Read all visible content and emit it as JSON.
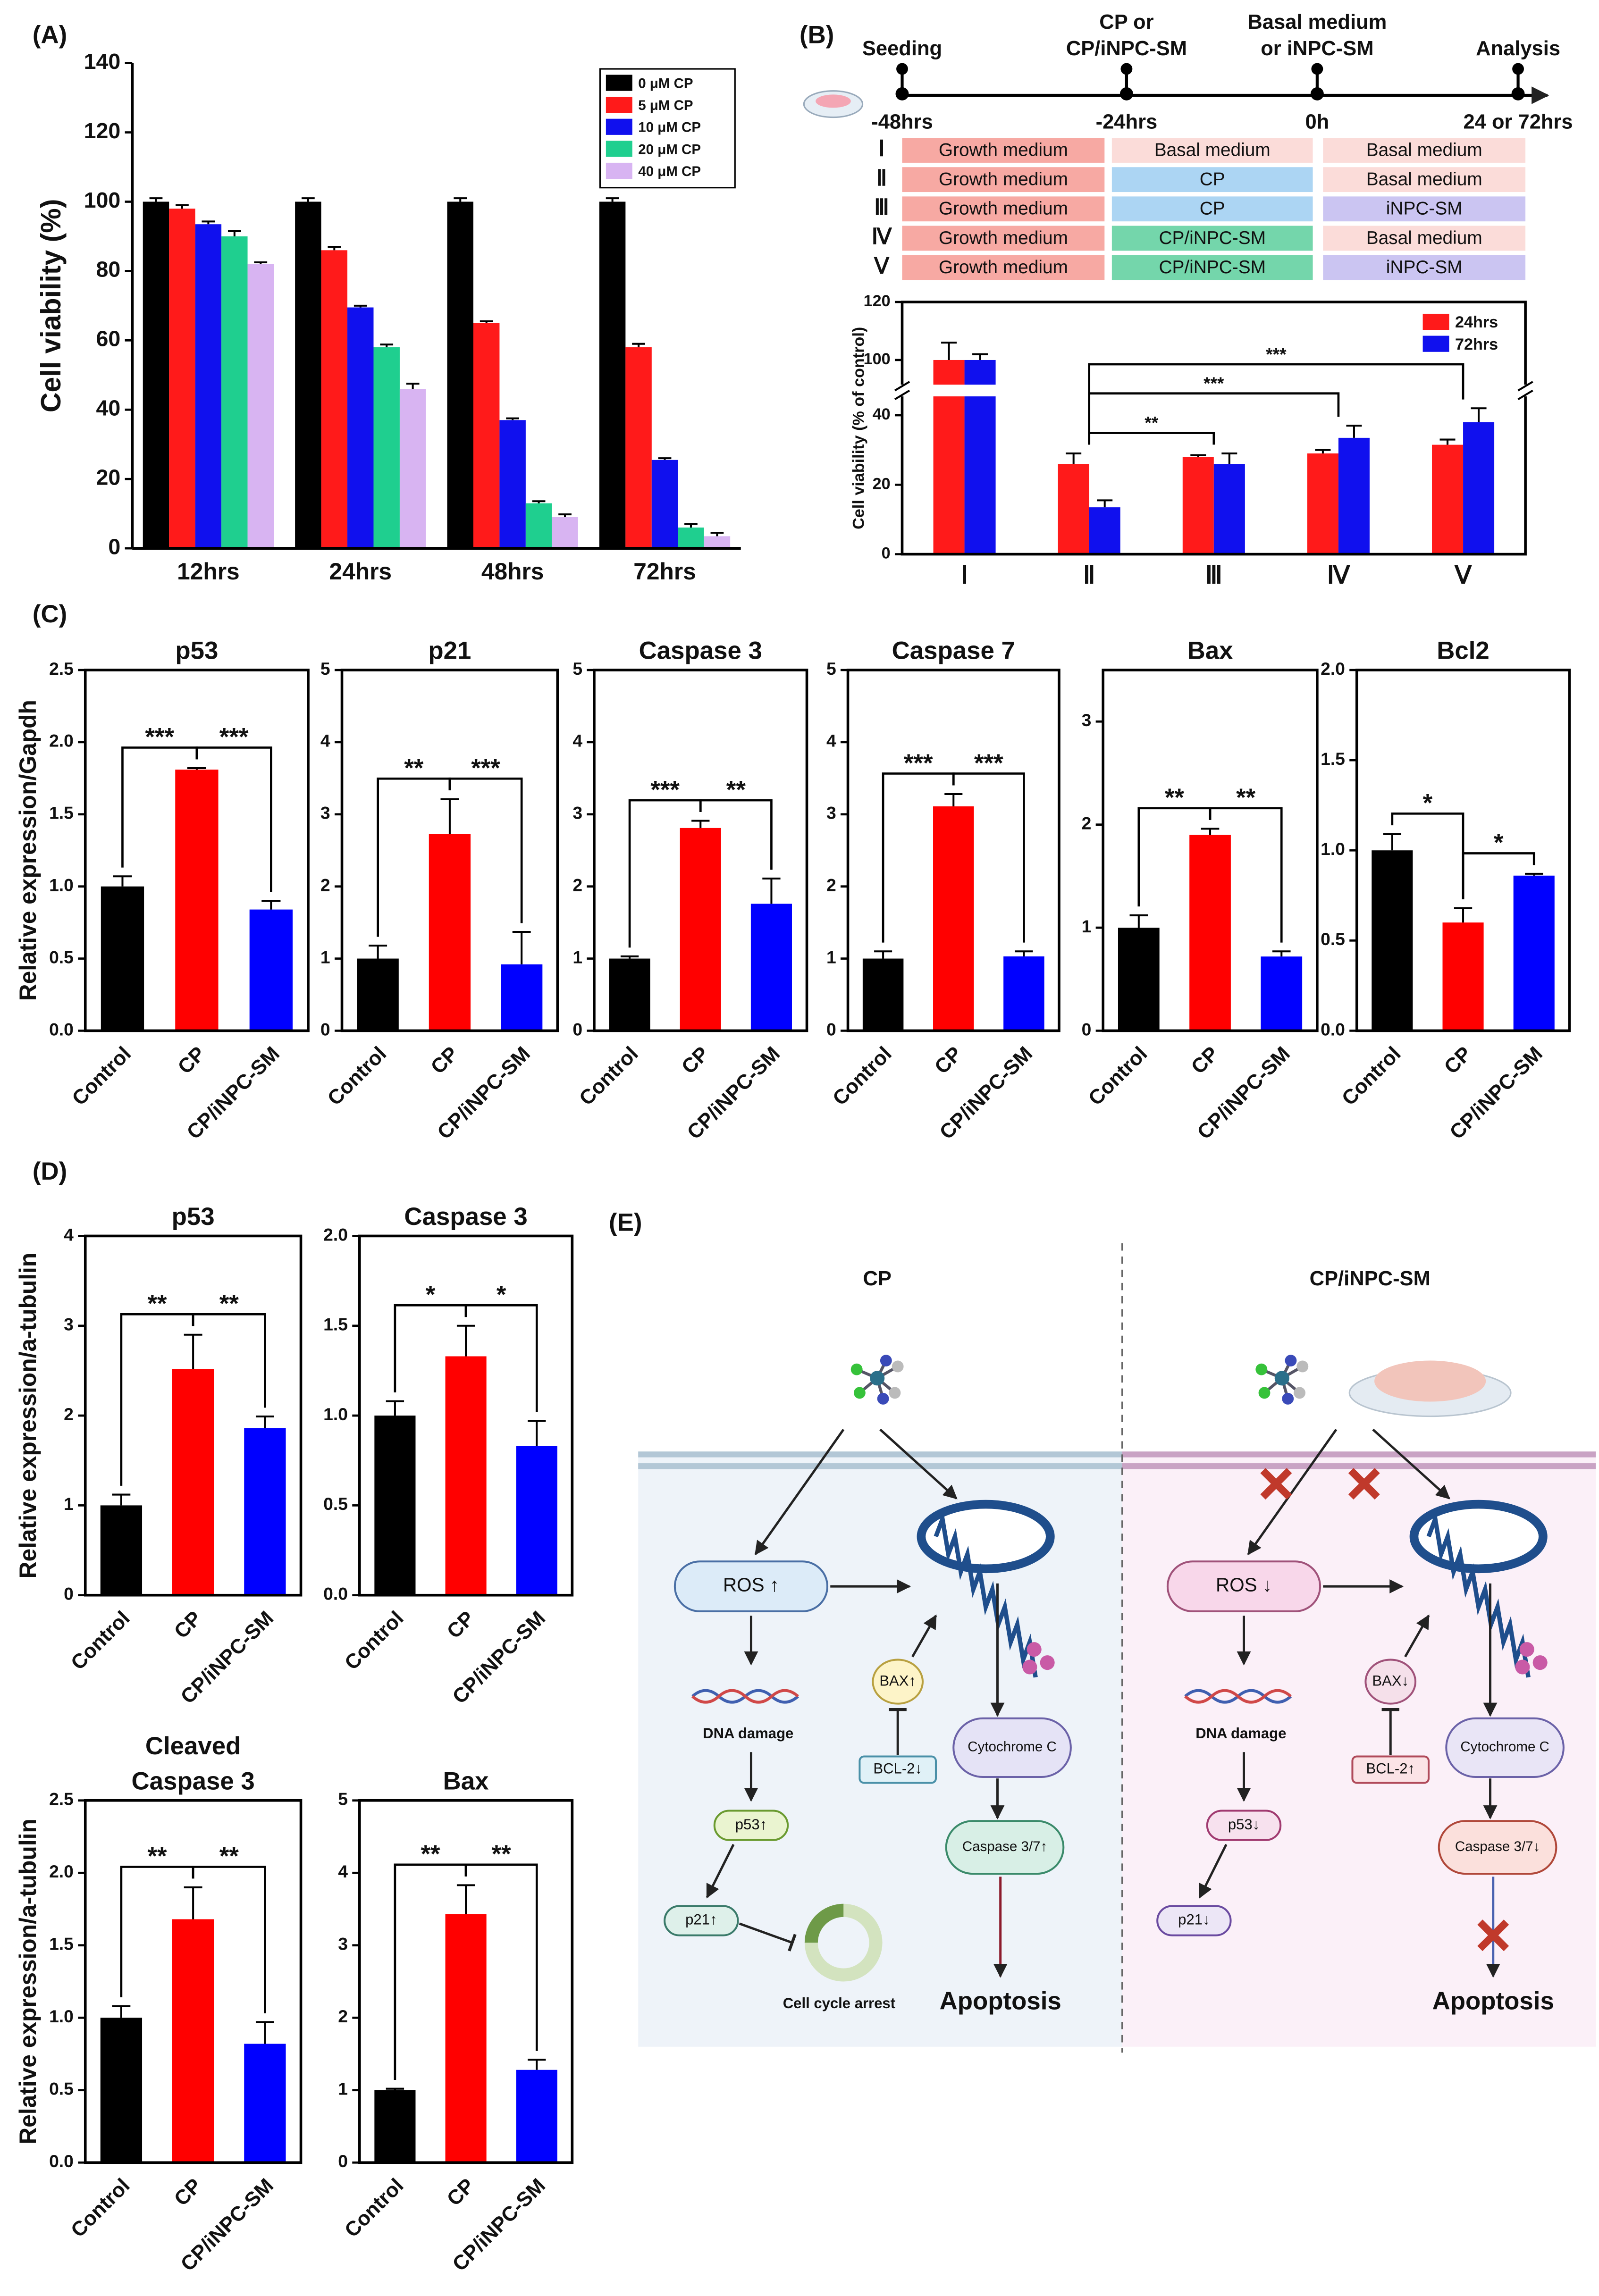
{
  "panel_labels": [
    "(A)",
    "(B)",
    "(C)",
    "(D)",
    "(E)"
  ],
  "chart_data": [
    {
      "type": "bar",
      "ylabel": "Cell viability (%)",
      "categories": [
        "12hrs",
        "24hrs",
        "48hrs",
        "72hrs"
      ],
      "series": [
        {
          "name": "0 μM CP",
          "color": "#000000",
          "values": [
            100,
            100,
            100,
            100
          ],
          "errors": [
            1,
            1,
            1,
            1
          ]
        },
        {
          "name": "5 μM CP",
          "color": "#ff1a1a",
          "values": [
            98,
            86,
            65,
            58
          ],
          "errors": [
            1,
            1,
            0.5,
            1
          ]
        },
        {
          "name": "10 μM CP",
          "color": "#1010ee",
          "values": [
            93.5,
            69.5,
            37,
            25.5
          ],
          "errors": [
            0.8,
            0.5,
            0.5,
            0.5
          ]
        },
        {
          "name": "20 μM CP",
          "color": "#1fcf8f",
          "values": [
            90,
            58,
            13,
            6
          ],
          "errors": [
            1.5,
            0.8,
            0.6,
            1
          ]
        },
        {
          "name": "40 μM CP",
          "color": "#d8b4f2",
          "values": [
            82,
            46,
            9,
            3.5
          ],
          "errors": [
            0.5,
            1.5,
            0.8,
            1
          ]
        }
      ],
      "ylim": [
        0,
        140
      ],
      "yticks": [
        0,
        20,
        40,
        60,
        80,
        100,
        120,
        140
      ],
      "legend": "upper right",
      "frame": false
    },
    {
      "type": "bar",
      "ylabel": "Cell viability (% of control)",
      "categories": [
        "Ⅰ",
        "Ⅱ",
        "Ⅲ",
        "Ⅳ",
        "Ⅴ"
      ],
      "series": [
        {
          "name": "24hrs",
          "color": "#ff1a1a",
          "values": [
            100,
            26,
            28,
            29,
            31.5
          ],
          "errors": [
            6,
            3,
            0.5,
            1,
            1.5
          ]
        },
        {
          "name": "72hrs",
          "color": "#1010ee",
          "values": [
            100,
            13.5,
            26,
            33.5,
            38
          ],
          "errors": [
            2,
            2,
            3,
            3.5,
            4
          ]
        }
      ],
      "ylim": [
        0,
        120
      ],
      "yticks": [
        0,
        20,
        40,
        100,
        120
      ],
      "axis_break": [
        45,
        92
      ],
      "legend": "upper right",
      "frame": true,
      "significance": [
        {
          "text": "**",
          "between": [
            1,
            2
          ]
        },
        {
          "text": "***",
          "between": [
            1,
            3
          ]
        },
        {
          "text": "***",
          "between": [
            1,
            4
          ]
        }
      ],
      "timeline": [
        {
          "event": [
            "Seeding"
          ],
          "time": "-48hrs"
        },
        {
          "event": [
            "CP or",
            "CP/iNPC-SM"
          ],
          "time": "-24hrs"
        },
        {
          "event": [
            "Basal medium",
            "or iNPC-SM"
          ],
          "time": "0h"
        },
        {
          "event": [
            "Analysis"
          ],
          "time": "24 or 72hrs"
        }
      ],
      "table": [
        {
          "group": "Ⅰ",
          "cells": [
            {
              "text": "Growth medium",
              "color": "#f7a9a3"
            },
            {
              "text": "Basal medium",
              "color": "#fbdcd9"
            },
            {
              "text": "Basal medium",
              "color": "#fbdcd9"
            }
          ]
        },
        {
          "group": "Ⅱ",
          "cells": [
            {
              "text": "Growth medium",
              "color": "#f7a9a3"
            },
            {
              "text": "CP",
              "color": "#acd5f3"
            },
            {
              "text": "Basal medium",
              "color": "#fbdcd9"
            }
          ]
        },
        {
          "group": "Ⅲ",
          "cells": [
            {
              "text": "Growth medium",
              "color": "#f7a9a3"
            },
            {
              "text": "CP",
              "color": "#acd5f3"
            },
            {
              "text": "iNPC-SM",
              "color": "#cbc5f2"
            }
          ]
        },
        {
          "group": "Ⅳ",
          "cells": [
            {
              "text": "Growth medium",
              "color": "#f7a9a3"
            },
            {
              "text": "CP/iNPC-SM",
              "color": "#74d6ab"
            },
            {
              "text": "Basal medium",
              "color": "#fbdcd9"
            }
          ]
        },
        {
          "group": "Ⅴ",
          "cells": [
            {
              "text": "Growth medium",
              "color": "#f7a9a3"
            },
            {
              "text": "CP/iNPC-SM",
              "color": "#74d6ab"
            },
            {
              "text": "iNPC-SM",
              "color": "#cbc5f2"
            }
          ]
        }
      ]
    },
    {
      "type": "bar",
      "title": "p53",
      "ylabel": "Relative expression/Gapdh",
      "categories": [
        "Control",
        "CP",
        "CP/iNPC-SM"
      ],
      "colors": [
        "#000000",
        "#ff0000",
        "#0000ff"
      ],
      "values": [
        1.0,
        1.81,
        0.84
      ],
      "errors": [
        0.07,
        0.01,
        0.06
      ],
      "ylim": [
        0,
        2.5
      ],
      "yticks": [
        {
          "value": 0,
          "label": "0.0"
        },
        0.5,
        {
          "value": 1,
          "label": "1.0"
        },
        1.5,
        {
          "value": 2,
          "label": "2.0"
        },
        2.5
      ],
      "frame": true,
      "significance": [
        {
          "text": "***",
          "between": [
            0,
            1
          ]
        },
        {
          "text": "***",
          "between": [
            1,
            2
          ]
        }
      ]
    },
    {
      "type": "bar",
      "title": "p21",
      "categories": [
        "Control",
        "CP",
        "CP/iNPC-SM"
      ],
      "colors": [
        "#000000",
        "#ff0000",
        "#0000ff"
      ],
      "values": [
        1.0,
        2.73,
        0.92
      ],
      "errors": [
        0.18,
        0.48,
        0.45
      ],
      "ylim": [
        0,
        5
      ],
      "yticks": [
        0,
        1,
        2,
        3,
        4,
        5
      ],
      "frame": true,
      "significance": [
        {
          "text": "**",
          "between": [
            0,
            1
          ]
        },
        {
          "text": "***",
          "between": [
            1,
            2
          ]
        }
      ]
    },
    {
      "type": "bar",
      "title": "Caspase 3",
      "categories": [
        "Control",
        "CP",
        "CP/iNPC-SM"
      ],
      "colors": [
        "#000000",
        "#ff0000",
        "#0000ff"
      ],
      "values": [
        1.0,
        2.81,
        1.76
      ],
      "errors": [
        0.03,
        0.1,
        0.35
      ],
      "ylim": [
        0,
        5
      ],
      "yticks": [
        0,
        1,
        2,
        3,
        4,
        5
      ],
      "frame": true,
      "significance": [
        {
          "text": "***",
          "between": [
            0,
            1
          ]
        },
        {
          "text": "**",
          "between": [
            1,
            2
          ]
        }
      ]
    },
    {
      "type": "bar",
      "title": "Caspase 7",
      "categories": [
        "Control",
        "CP",
        "CP/iNPC-SM"
      ],
      "colors": [
        "#000000",
        "#ff0000",
        "#0000ff"
      ],
      "values": [
        1.0,
        3.11,
        1.03
      ],
      "errors": [
        0.1,
        0.17,
        0.07
      ],
      "ylim": [
        0,
        5
      ],
      "yticks": [
        0,
        1,
        2,
        3,
        4,
        5
      ],
      "frame": true,
      "significance": [
        {
          "text": "***",
          "between": [
            0,
            1
          ]
        },
        {
          "text": "***",
          "between": [
            1,
            2
          ]
        }
      ]
    },
    {
      "type": "bar",
      "title": "Bax",
      "categories": [
        "Control",
        "CP",
        "CP/iNPC-SM"
      ],
      "colors": [
        "#000000",
        "#ff0000",
        "#0000ff"
      ],
      "values": [
        1.0,
        1.9,
        0.72
      ],
      "errors": [
        0.12,
        0.06,
        0.05
      ],
      "ylim": [
        0,
        3.5
      ],
      "yticks": [
        0,
        1,
        2,
        3
      ],
      "frame": true,
      "significance": [
        {
          "text": "**",
          "between": [
            0,
            1
          ]
        },
        {
          "text": "**",
          "between": [
            1,
            2
          ]
        }
      ]
    },
    {
      "type": "bar",
      "title": "Bcl2",
      "categories": [
        "Control",
        "CP",
        "CP/iNPC-SM"
      ],
      "colors": [
        "#000000",
        "#ff0000",
        "#0000ff"
      ],
      "values": [
        1.0,
        0.6,
        0.86
      ],
      "errors": [
        0.09,
        0.08,
        0.01
      ],
      "ylim": [
        0,
        2
      ],
      "yticks": [
        {
          "value": 0,
          "label": "0.0"
        },
        0.5,
        {
          "value": 1,
          "label": "1.0"
        },
        1.5,
        {
          "value": 2,
          "label": "2.0"
        }
      ],
      "frame": true,
      "significance": [
        {
          "text": "*",
          "between": [
            0,
            1
          ]
        },
        {
          "text": "*",
          "between": [
            1,
            2
          ]
        }
      ]
    },
    {
      "type": "bar",
      "title": "p53",
      "ylabel": "Relative expression/a-tubulin",
      "categories": [
        "Control",
        "CP",
        "CP/iNPC-SM"
      ],
      "colors": [
        "#000000",
        "#ff0000",
        "#0000ff"
      ],
      "values": [
        1.0,
        2.52,
        1.86
      ],
      "errors": [
        0.12,
        0.38,
        0.13
      ],
      "ylim": [
        0,
        4
      ],
      "yticks": [
        0,
        1,
        2,
        3,
        4
      ],
      "frame": true,
      "significance": [
        {
          "text": "**",
          "between": [
            0,
            1
          ]
        },
        {
          "text": "**",
          "between": [
            1,
            2
          ]
        }
      ]
    },
    {
      "type": "bar",
      "title": "Caspase 3",
      "categories": [
        "Control",
        "CP",
        "CP/iNPC-SM"
      ],
      "colors": [
        "#000000",
        "#ff0000",
        "#0000ff"
      ],
      "values": [
        1.0,
        1.33,
        0.83
      ],
      "errors": [
        0.08,
        0.17,
        0.14
      ],
      "ylim": [
        0,
        2
      ],
      "yticks": [
        {
          "value": 0,
          "label": "0.0"
        },
        0.5,
        {
          "value": 1,
          "label": "1.0"
        },
        1.5,
        {
          "value": 2,
          "label": "2.0"
        }
      ],
      "frame": true,
      "significance": [
        {
          "text": "*",
          "between": [
            0,
            1
          ]
        },
        {
          "text": "*",
          "between": [
            1,
            2
          ]
        }
      ]
    },
    {
      "type": "bar",
      "title": [
        "Cleaved",
        "Caspase 3"
      ],
      "ylabel": "Relative expression/a-tubulin",
      "categories": [
        "Control",
        "CP",
        "CP/iNPC-SM"
      ],
      "colors": [
        "#000000",
        "#ff0000",
        "#0000ff"
      ],
      "values": [
        1.0,
        1.68,
        0.82
      ],
      "errors": [
        0.08,
        0.22,
        0.15
      ],
      "ylim": [
        0,
        2.5
      ],
      "yticks": [
        {
          "value": 0,
          "label": "0.0"
        },
        0.5,
        {
          "value": 1,
          "label": "1.0"
        },
        1.5,
        {
          "value": 2,
          "label": "2.0"
        },
        2.5
      ],
      "frame": true,
      "significance": [
        {
          "text": "**",
          "between": [
            0,
            1
          ]
        },
        {
          "text": "**",
          "between": [
            1,
            2
          ]
        }
      ]
    },
    {
      "type": "bar",
      "title": "Bax",
      "categories": [
        "Control",
        "CP",
        "CP/iNPC-SM"
      ],
      "colors": [
        "#000000",
        "#ff0000",
        "#0000ff"
      ],
      "values": [
        1.0,
        3.43,
        1.28
      ],
      "errors": [
        0.02,
        0.4,
        0.14
      ],
      "ylim": [
        0,
        5
      ],
      "yticks": [
        0,
        1,
        2,
        3,
        4,
        5
      ],
      "frame": true,
      "significance": [
        {
          "text": "**",
          "between": [
            0,
            1
          ]
        },
        {
          "text": "**",
          "between": [
            1,
            2
          ]
        }
      ]
    }
  ],
  "diagram": {
    "left": {
      "title": "CP",
      "ros": "ROS ↑",
      "dna": "DNA damage",
      "bax": "BAX↑",
      "bcl2": "BCL-2↓",
      "cyto": "Cytochrome C",
      "caspase": "Caspase 3/7↑",
      "p53": "p53↑",
      "p21": "p21↑",
      "cycle": "Cell cycle arrest",
      "apoptosis": "Apoptosis"
    },
    "right": {
      "title": "CP/iNPC-SM",
      "ros": "ROS ↓",
      "dna": "DNA damage",
      "bax": "BAX↓",
      "bcl2": "BCL-2↑",
      "cyto": "Cytochrome C",
      "caspase": "Caspase 3/7↓",
      "p53": "p53↓",
      "p21": "p21↓",
      "apoptosis": "Apoptosis"
    }
  }
}
